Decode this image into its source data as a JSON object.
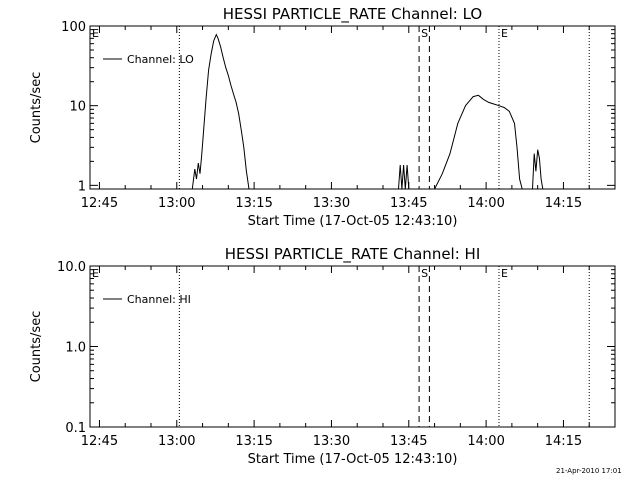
{
  "footer_text": "21-Apr-2010 17:01",
  "chart_data": [
    {
      "type": "line",
      "title": "HESSI PARTICLE_RATE Channel: LO",
      "xlabel": "Start Time (17-Oct-05 12:43:10)",
      "ylabel": "Counts/sec",
      "yscale": "log",
      "xlim": [
        "12:43:10",
        "14:25:00"
      ],
      "ylim": [
        0.9,
        100
      ],
      "x_ticks": [
        "12:45",
        "13:00",
        "13:15",
        "13:30",
        "13:45",
        "14:00",
        "14:15"
      ],
      "y_ticks": [
        {
          "value": 1,
          "label": "1"
        },
        {
          "value": 10,
          "label": "10"
        },
        {
          "value": 100,
          "label": "100"
        }
      ],
      "legend": {
        "label": "Channel: LO",
        "position": "top-left"
      },
      "markers": [
        {
          "time": "13:00:30",
          "style": "dotted",
          "label": ""
        },
        {
          "time": "13:47:00",
          "style": "dashed",
          "label": "S"
        },
        {
          "time": "13:49:00",
          "style": "dashed",
          "label": ""
        },
        {
          "time": "14:02:30",
          "style": "dotted",
          "label": "E"
        },
        {
          "time": "14:20:00",
          "style": "dotted",
          "label": ""
        }
      ],
      "corner_label": "E",
      "series": [
        {
          "segments": [
            [
              [
                "13:03:00",
                0.9
              ],
              [
                "13:03:30",
                1.6
              ],
              [
                "13:03:50",
                1.2
              ],
              [
                "13:04:10",
                1.9
              ],
              [
                "13:04:30",
                1.4
              ],
              [
                "13:04:50",
                2.4
              ],
              [
                "13:05:10",
                4.5
              ],
              [
                "13:05:40",
                12
              ],
              [
                "13:06:10",
                28
              ],
              [
                "13:06:40",
                45
              ],
              [
                "13:07:10",
                65
              ],
              [
                "13:07:40",
                78
              ],
              [
                "13:08:00",
                70
              ],
              [
                "13:08:30",
                55
              ],
              [
                "13:09:00",
                40
              ],
              [
                "13:09:30",
                30
              ],
              [
                "13:10:00",
                24
              ],
              [
                "13:10:30",
                18
              ],
              [
                "13:11:00",
                14
              ],
              [
                "13:11:30",
                11
              ],
              [
                "13:12:00",
                8
              ],
              [
                "13:12:30",
                5
              ],
              [
                "13:13:00",
                3
              ],
              [
                "13:13:30",
                1.5
              ],
              [
                "13:14:00",
                0.9
              ]
            ],
            [
              [
                "13:43:00",
                0.9
              ],
              [
                "13:43:20",
                1.8
              ],
              [
                "13:43:40",
                0.9
              ],
              [
                "13:44:00",
                1.8
              ],
              [
                "13:44:20",
                0.9
              ],
              [
                "13:44:40",
                1.8
              ],
              [
                "13:45:00",
                0.9
              ]
            ],
            [
              [
                "13:50:00",
                0.9
              ],
              [
                "13:51:30",
                1.4
              ],
              [
                "13:53:00",
                2.5
              ],
              [
                "13:54:30",
                6
              ],
              [
                "13:56:00",
                10
              ],
              [
                "13:57:30",
                13
              ],
              [
                "13:58:30",
                13.5
              ],
              [
                "13:59:30",
                12
              ],
              [
                "14:00:30",
                11
              ],
              [
                "14:01:30",
                10.5
              ],
              [
                "14:02:30",
                10
              ],
              [
                "14:03:30",
                9.5
              ],
              [
                "14:04:30",
                8.5
              ],
              [
                "14:05:30",
                6
              ],
              [
                "14:06:00",
                3
              ],
              [
                "14:06:30",
                1.2
              ],
              [
                "14:07:00",
                0.9
              ]
            ],
            [
              [
                "14:09:00",
                0.9
              ],
              [
                "14:09:20",
                2.5
              ],
              [
                "14:09:40",
                1.5
              ],
              [
                "14:10:00",
                2.8
              ],
              [
                "14:10:20",
                2.2
              ],
              [
                "14:10:40",
                1.2
              ],
              [
                "14:11:00",
                0.9
              ]
            ]
          ]
        }
      ]
    },
    {
      "type": "line",
      "title": "HESSI PARTICLE_RATE Channel: HI",
      "xlabel": "Start Time (17-Oct-05 12:43:10)",
      "ylabel": "Counts/sec",
      "yscale": "log",
      "xlim": [
        "12:43:10",
        "14:25:00"
      ],
      "ylim": [
        0.1,
        10
      ],
      "x_ticks": [
        "12:45",
        "13:00",
        "13:15",
        "13:30",
        "13:45",
        "14:00",
        "14:15"
      ],
      "y_ticks": [
        {
          "value": 0.1,
          "label": "0.1"
        },
        {
          "value": 1,
          "label": "1.0"
        },
        {
          "value": 10,
          "label": "10.0"
        }
      ],
      "legend": {
        "label": "Channel: HI",
        "position": "top-left"
      },
      "markers": [
        {
          "time": "13:00:30",
          "style": "dotted",
          "label": ""
        },
        {
          "time": "13:47:00",
          "style": "dashed",
          "label": "S"
        },
        {
          "time": "13:49:00",
          "style": "dashed",
          "label": ""
        },
        {
          "time": "14:02:30",
          "style": "dotted",
          "label": "E"
        },
        {
          "time": "14:20:00",
          "style": "dotted",
          "label": ""
        }
      ],
      "corner_label": "E",
      "series": [
        {
          "segments": []
        }
      ]
    }
  ]
}
